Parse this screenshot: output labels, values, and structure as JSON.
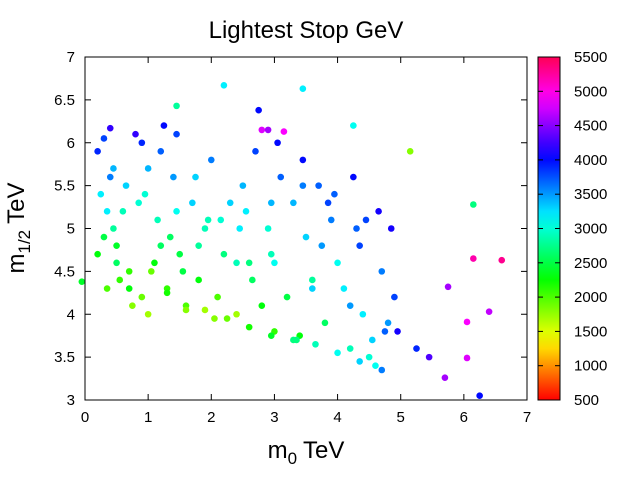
{
  "chart_data": {
    "type": "scatter",
    "title": "Lightest Stop GeV",
    "xlabel": {
      "base": "m",
      "sub": "0",
      "unit": "TeV"
    },
    "ylabel": {
      "base": "m",
      "sub": "1/2",
      "unit": "TeV"
    },
    "xlim": [
      0,
      7
    ],
    "ylim": [
      3,
      7
    ],
    "xticks": [
      0,
      1,
      2,
      3,
      4,
      5,
      6,
      7
    ],
    "yticks": [
      3,
      3.5,
      4,
      4.5,
      5,
      5.5,
      6,
      6.5,
      7
    ],
    "zlim": [
      500,
      5500
    ],
    "zticks": [
      500,
      1000,
      1500,
      2000,
      2500,
      3000,
      3500,
      4000,
      4500,
      5000,
      5500
    ],
    "x": [
      0.2,
      0.3,
      0.25,
      0.4,
      0.5,
      0.35,
      0.6,
      0.7,
      0.2,
      0.45,
      0.8,
      0.9,
      1.0,
      0.3,
      0.55,
      0.65,
      0.75,
      0.85,
      1.1,
      1.2,
      1.3,
      1.0,
      0.9,
      1.15,
      1.4,
      1.5,
      1.6,
      1.7,
      1.35,
      1.25,
      1.8,
      1.9,
      2.0,
      2.1,
      1.75,
      1.55,
      1.45,
      2.2,
      2.3,
      2.4,
      2.5,
      2.05,
      2.15,
      2.6,
      2.7,
      2.8,
      2.9,
      3.0,
      2.55,
      2.65,
      3.1,
      3.2,
      3.3,
      3.4,
      3.5,
      2.95,
      3.05,
      3.6,
      3.7,
      3.8,
      3.9,
      4.0,
      3.35,
      3.45,
      4.1,
      4.2,
      4.3,
      4.4,
      4.5,
      3.75,
      3.85,
      4.6,
      4.7,
      4.8,
      4.9,
      4.55,
      4.65,
      4.25,
      4.35,
      0.35,
      0.5,
      0.7,
      1.05,
      1.3,
      1.6,
      1.9,
      2.25,
      2.6,
      2.95,
      3.3,
      3.65,
      4.0,
      4.35,
      4.7,
      0.45,
      0.95,
      1.45,
      1.95,
      2.45,
      2.95,
      3.45,
      3.95,
      4.45,
      4.85,
      1.2,
      1.8,
      2.4,
      3.0,
      3.6,
      4.2,
      4.75,
      2.2,
      3.45,
      1.45,
      5.15,
      6.15,
      6.6,
      6.15,
      5.75,
      6.4,
      6.05,
      6.05,
      5.7,
      6.25,
      2.8,
      2.9,
      3.15,
      2.75,
      4.25,
      0.4,
      -0.05,
      5.25,
      5.45,
      4.95
    ],
    "y": [
      5.9,
      6.05,
      5.4,
      5.6,
      4.8,
      4.3,
      5.2,
      4.5,
      4.7,
      5.0,
      6.1,
      4.2,
      5.7,
      4.9,
      4.4,
      5.5,
      4.1,
      5.3,
      4.6,
      5.9,
      4.3,
      4.0,
      6.0,
      5.1,
      5.6,
      4.7,
      4.1,
      5.3,
      4.9,
      6.2,
      4.4,
      5.0,
      5.8,
      4.2,
      5.6,
      4.5,
      6.1,
      4.7,
      5.3,
      4.0,
      5.5,
      3.95,
      5.1,
      4.6,
      5.9,
      4.1,
      5.0,
      3.8,
      5.2,
      4.4,
      5.6,
      4.2,
      5.3,
      3.75,
      4.9,
      4.7,
      6.0,
      4.4,
      5.5,
      3.9,
      5.1,
      4.6,
      3.7,
      5.8,
      4.3,
      3.6,
      5.0,
      4.0,
      3.5,
      4.8,
      5.3,
      3.4,
      4.5,
      3.9,
      4.2,
      3.7,
      5.2,
      5.6,
      4.8,
      5.2,
      4.6,
      4.3,
      4.5,
      4.25,
      4.05,
      4.05,
      3.95,
      3.85,
      3.75,
      3.7,
      3.65,
      3.55,
      3.45,
      3.35,
      5.7,
      5.4,
      5.2,
      5.1,
      5.0,
      5.3,
      5.5,
      5.4,
      5.1,
      5.0,
      4.8,
      4.8,
      4.6,
      4.6,
      4.3,
      4.1,
      3.8,
      6.67,
      6.63,
      6.43,
      5.9,
      5.28,
      4.63,
      4.65,
      4.32,
      4.03,
      3.91,
      3.49,
      3.26,
      3.05,
      6.15,
      6.15,
      6.13,
      6.38,
      6.2,
      6.17,
      4.38,
      3.6,
      3.5,
      3.8
    ],
    "z": [
      3900,
      3800,
      3200,
      3600,
      2400,
      2000,
      2900,
      2100,
      2300,
      2800,
      4200,
      1900,
      3400,
      2500,
      2100,
      3300,
      1800,
      3000,
      2300,
      3700,
      2100,
      1700,
      3900,
      2900,
      3500,
      2500,
      2000,
      3300,
      2600,
      4000,
      2300,
      2900,
      3600,
      2000,
      3300,
      2500,
      3800,
      2700,
      3300,
      1700,
      3400,
      1800,
      3000,
      2700,
      3800,
      2300,
      3000,
      2100,
      3200,
      2600,
      3700,
      2500,
      3400,
      2300,
      3300,
      2900,
      4000,
      2800,
      3700,
      2600,
      3600,
      3100,
      2700,
      4000,
      3200,
      2900,
      3700,
      3200,
      3000,
      3500,
      3800,
      3100,
      3600,
      3500,
      3800,
      3300,
      4100,
      4000,
      3800,
      3200,
      2600,
      2300,
      1900,
      2200,
      1800,
      1700,
      1900,
      2200,
      2400,
      2700,
      2900,
      3100,
      3300,
      3600,
      3400,
      3000,
      3100,
      2900,
      3200,
      3400,
      3600,
      3700,
      3800,
      4100,
      2600,
      2800,
      2900,
      3100,
      3300,
      3500,
      3700,
      3200,
      3200,
      2800,
      1800,
      2700,
      5300,
      5200,
      4600,
      4700,
      4900,
      4800,
      4600,
      4000,
      4800,
      4600,
      4900,
      4000,
      3100,
      4200,
      2400,
      3900,
      4300,
      4100
    ]
  }
}
